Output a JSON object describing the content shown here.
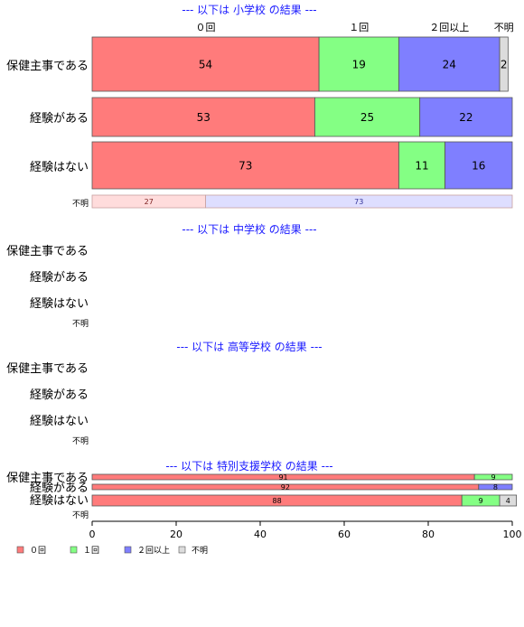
{
  "chart_data": {
    "type": "bar",
    "orientation": "horizontal",
    "stacked": true,
    "xlim": [
      0,
      100
    ],
    "x_ticks": [
      "0",
      "20",
      "40",
      "60",
      "80",
      "100"
    ],
    "legend_position": "bottom-left",
    "legend": [
      {
        "label": "０回",
        "color": "#ff7b7b"
      },
      {
        "label": "１回",
        "color": "#84ff84"
      },
      {
        "label": "２回以上",
        "color": "#7f7fff"
      },
      {
        "label": "不明",
        "color": "#dcdcdc"
      }
    ],
    "header_labels": [
      "０回",
      "１回",
      "２回以上",
      "不明"
    ],
    "panels": [
      {
        "title": "--- 以下は 小学校 の結果 ---",
        "rows": [
          {
            "label": "保健主事である",
            "values": [
              54,
              19,
              24,
              2
            ]
          },
          {
            "label": "経験がある",
            "values": [
              53,
              25,
              22,
              0
            ]
          },
          {
            "label": "経験はない",
            "values": [
              73,
              11,
              16,
              0
            ]
          },
          {
            "label": "不明",
            "values": [
              27,
              0,
              73,
              0
            ]
          }
        ]
      },
      {
        "title": "--- 以下は 中学校 の結果 ---",
        "rows": [
          {
            "label": "保健主事である",
            "values": []
          },
          {
            "label": "経験がある",
            "values": []
          },
          {
            "label": "経験はない",
            "values": []
          },
          {
            "label": "不明",
            "values": []
          }
        ]
      },
      {
        "title": "--- 以下は 高等学校 の結果 ---",
        "rows": [
          {
            "label": "保健主事である",
            "values": []
          },
          {
            "label": "経験がある",
            "values": []
          },
          {
            "label": "経験はない",
            "values": []
          },
          {
            "label": "不明",
            "values": []
          }
        ]
      },
      {
        "title": "--- 以下は 特別支援学校 の結果 ---",
        "rows": [
          {
            "label": "保健主事である",
            "values": [
              91,
              9,
              0,
              0
            ]
          },
          {
            "label": "経験がある",
            "values": [
              92,
              0,
              8,
              0
            ]
          },
          {
            "label": "経験はない",
            "values": [
              88,
              9,
              0,
              4
            ]
          },
          {
            "label": "不明",
            "values": []
          }
        ]
      }
    ]
  }
}
